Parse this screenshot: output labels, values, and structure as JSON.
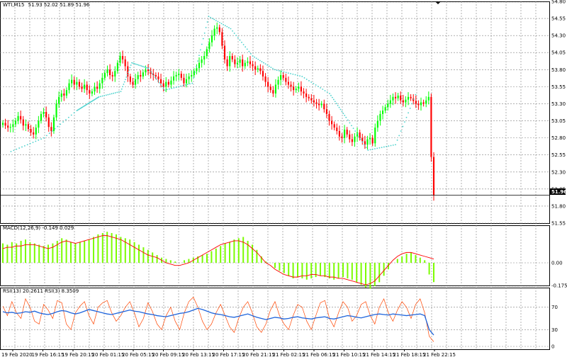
{
  "chart_data": [
    {
      "type": "candlestick",
      "panel": "price",
      "title": "WTI,M15",
      "ohlc_label": "51.93 52.02 51.89 51.96",
      "ylim": [
        51.55,
        54.8
      ],
      "y_ticks": [
        "54.80",
        "54.55",
        "54.30",
        "54.05",
        "53.80",
        "53.55",
        "53.30",
        "53.05",
        "52.80",
        "52.55",
        "52.30",
        "52.05",
        "51.80",
        "51.55"
      ],
      "last_price": "51.96",
      "closes": [
        53.02,
        52.98,
        52.95,
        52.96,
        53.0,
        53.05,
        53.12,
        53.07,
        52.98,
        53.0,
        52.93,
        52.88,
        52.85,
        52.95,
        53.05,
        53.15,
        53.18,
        53.1,
        52.96,
        52.9,
        53.1,
        53.3,
        53.4,
        53.45,
        53.42,
        53.5,
        53.6,
        53.65,
        53.58,
        53.62,
        53.55,
        53.52,
        53.58,
        53.5,
        53.45,
        53.48,
        53.55,
        53.52,
        53.6,
        53.68,
        53.75,
        53.8,
        53.72,
        53.7,
        53.78,
        53.9,
        54.0,
        53.95,
        53.85,
        53.7,
        53.62,
        53.58,
        53.66,
        53.72,
        53.7,
        53.76,
        53.8,
        53.78,
        53.74,
        53.72,
        53.7,
        53.66,
        53.6,
        53.55,
        53.62,
        53.58,
        53.64,
        53.7,
        53.72,
        53.74,
        53.68,
        53.6,
        53.66,
        53.7,
        53.72,
        53.78,
        53.82,
        53.9,
        53.95,
        54.0,
        54.1,
        54.2,
        54.3,
        54.4,
        54.42,
        54.35,
        54.15,
        53.95,
        53.85,
        54.0,
        53.95,
        53.88,
        53.9,
        53.95,
        53.85,
        53.9,
        53.92,
        53.88,
        53.85,
        53.8,
        53.82,
        53.78,
        53.7,
        53.62,
        53.55,
        53.5,
        53.45,
        53.58,
        53.65,
        53.72,
        53.68,
        53.62,
        53.58,
        53.55,
        53.5,
        53.52,
        53.55,
        53.48,
        53.45,
        53.4,
        53.38,
        53.35,
        53.32,
        53.3,
        53.28,
        53.3,
        53.22,
        53.15,
        53.05,
        53.0,
        52.95,
        52.9,
        52.82,
        52.8,
        52.92,
        52.85,
        52.78,
        52.74,
        52.82,
        52.88,
        52.8,
        52.75,
        52.7,
        52.78,
        52.8,
        52.72,
        52.95,
        53.05,
        53.15,
        53.2,
        53.25,
        53.3,
        53.35,
        53.4,
        53.38,
        53.42,
        53.35,
        53.32,
        53.36,
        53.4,
        53.38,
        53.34,
        53.3,
        53.28,
        53.32,
        53.3,
        53.35,
        53.4,
        52.52,
        51.96
      ],
      "psar": [
        {
          "x": 0.02,
          "y": 52.6
        },
        {
          "x": 0.08,
          "y": 52.8
        },
        {
          "x": 0.14,
          "y": 53.2
        },
        {
          "x": 0.16,
          "y": 53.3
        },
        {
          "x": 0.18,
          "y": 53.4
        },
        {
          "x": 0.22,
          "y": 53.48
        },
        {
          "x": 0.24,
          "y": 53.9
        },
        {
          "x": 0.27,
          "y": 53.82
        },
        {
          "x": 0.3,
          "y": 53.5
        },
        {
          "x": 0.35,
          "y": 53.6
        },
        {
          "x": 0.38,
          "y": 54.58
        },
        {
          "x": 0.42,
          "y": 54.4
        },
        {
          "x": 0.46,
          "y": 54.0
        },
        {
          "x": 0.5,
          "y": 53.8
        },
        {
          "x": 0.55,
          "y": 53.7
        },
        {
          "x": 0.6,
          "y": 53.45
        },
        {
          "x": 0.63,
          "y": 53.1
        },
        {
          "x": 0.67,
          "y": 52.62
        },
        {
          "x": 0.72,
          "y": 52.7
        },
        {
          "x": 0.76,
          "y": 53.5
        }
      ]
    },
    {
      "type": "macd",
      "panel": "macd",
      "label": "MACD(12,26,9) -0.149 0.029",
      "ylim": [
        -0.175,
        0.29
      ],
      "y_ticks": [
        "0.00",
        "-0.175"
      ],
      "histogram": [
        0.15,
        0.14,
        0.16,
        0.15,
        0.17,
        0.18,
        0.16,
        0.15,
        0.14,
        0.13,
        0.14,
        0.15,
        0.17,
        0.19,
        0.18,
        0.16,
        0.15,
        0.16,
        0.17,
        0.18,
        0.2,
        0.22,
        0.23,
        0.24,
        0.23,
        0.22,
        0.2,
        0.19,
        0.18,
        0.16,
        0.14,
        0.12,
        0.1,
        0.08,
        0.06,
        0.04,
        0.03,
        0.02,
        0.01,
        0.0,
        0.02,
        0.03,
        0.04,
        0.05,
        0.06,
        0.07,
        0.09,
        0.11,
        0.13,
        0.15,
        0.16,
        0.18,
        0.19,
        0.2,
        0.17,
        0.14,
        0.1,
        0.05,
        0.01,
        0.0,
        -0.04,
        -0.06,
        -0.08,
        -0.1,
        -0.12,
        -0.11,
        -0.12,
        -0.13,
        -0.12,
        -0.11,
        -0.1,
        -0.11,
        -0.12,
        -0.13,
        -0.12,
        -0.11,
        -0.12,
        -0.13,
        -0.15,
        -0.17,
        -0.19,
        -0.2,
        -0.18,
        -0.15,
        -0.1,
        -0.05,
        0.0,
        0.03,
        0.05,
        0.07,
        0.08,
        0.06,
        0.04,
        0.02,
        -0.09,
        -0.149
      ],
      "signal": [
        0.11,
        0.12,
        0.12,
        0.13,
        0.13,
        0.14,
        0.14,
        0.14,
        0.13,
        0.12,
        0.11,
        0.12,
        0.14,
        0.16,
        0.17,
        0.16,
        0.15,
        0.16,
        0.17,
        0.18,
        0.19,
        0.2,
        0.21,
        0.21,
        0.2,
        0.19,
        0.18,
        0.16,
        0.14,
        0.12,
        0.1,
        0.08,
        0.06,
        0.05,
        0.04,
        0.02,
        0.0,
        -0.01,
        -0.02,
        -0.02,
        -0.01,
        0.0,
        0.02,
        0.04,
        0.06,
        0.08,
        0.1,
        0.12,
        0.14,
        0.15,
        0.16,
        0.17,
        0.17,
        0.16,
        0.14,
        0.11,
        0.08,
        0.04,
        0.0,
        -0.02,
        -0.05,
        -0.07,
        -0.09,
        -0.1,
        -0.11,
        -0.11,
        -0.1,
        -0.1,
        -0.09,
        -0.09,
        -0.1,
        -0.1,
        -0.11,
        -0.11,
        -0.12,
        -0.12,
        -0.13,
        -0.14,
        -0.15,
        -0.16,
        -0.17,
        -0.16,
        -0.14,
        -0.1,
        -0.06,
        -0.02,
        0.02,
        0.05,
        0.07,
        0.08,
        0.08,
        0.07,
        0.06,
        0.05,
        0.04,
        0.029
      ]
    },
    {
      "type": "rsi",
      "panel": "rsi",
      "label": "RSI(13) 20.2611 RSI(3) 8.3509",
      "ylim": [
        0,
        100
      ],
      "y_ticks": [
        "70",
        "30",
        "0"
      ],
      "rsi13": [
        62,
        60,
        61,
        59,
        60,
        62,
        61,
        63,
        60,
        58,
        57,
        59,
        62,
        64,
        63,
        60,
        58,
        60,
        63,
        66,
        64,
        62,
        60,
        58,
        57,
        59,
        61,
        63,
        65,
        63,
        62,
        60,
        58,
        57,
        55,
        54,
        53,
        55,
        57,
        59,
        60,
        62,
        65,
        68,
        66,
        63,
        60,
        58,
        57,
        55,
        53,
        52,
        54,
        56,
        58,
        55,
        52,
        50,
        48,
        50,
        52,
        51,
        49,
        50,
        52,
        53,
        51,
        50,
        49,
        51,
        52,
        53,
        50,
        49,
        51,
        53,
        55,
        54,
        52,
        51,
        53,
        55,
        57,
        58,
        57,
        56,
        58,
        57,
        56,
        55,
        56,
        57,
        58,
        55,
        30,
        20.2611
      ],
      "rsi3": [
        72,
        55,
        80,
        60,
        50,
        85,
        70,
        45,
        40,
        75,
        65,
        50,
        82,
        78,
        40,
        30,
        60,
        72,
        80,
        55,
        40,
        70,
        78,
        82,
        60,
        45,
        55,
        70,
        80,
        60,
        35,
        50,
        78,
        62,
        40,
        30,
        55,
        70,
        45,
        30,
        60,
        80,
        88,
        70,
        45,
        30,
        40,
        60,
        75,
        55,
        35,
        25,
        50,
        70,
        80,
        60,
        35,
        25,
        40,
        65,
        80,
        55,
        40,
        30,
        55,
        75,
        70,
        45,
        30,
        55,
        78,
        82,
        50,
        35,
        60,
        80,
        70,
        45,
        55,
        75,
        80,
        55,
        40,
        70,
        85,
        60,
        45,
        65,
        80,
        70,
        50,
        75,
        85,
        60,
        18,
        8.3509
      ]
    }
  ],
  "x_axis": {
    "labels": [
      "19 Feb 2020",
      "19 Feb 16:15",
      "19 Feb 20:15",
      "20 Feb 01:15",
      "20 Feb 05:15",
      "20 Feb 09:15",
      "20 Feb 13:15",
      "20 Feb 17:15",
      "20 Feb 21:15",
      "21 Feb 02:15",
      "21 Feb 06:15",
      "21 Feb 10:15",
      "21 Feb 14:15",
      "21 Feb 18:15",
      "21 Feb 22:15"
    ]
  },
  "colors": {
    "bull": "#00ff00",
    "bear": "#ff0000",
    "psar": "#48d1cc",
    "macd_hist": "#7cfc00",
    "macd_signal": "#ff0000",
    "rsi13": "#1e64dc",
    "rsi3": "#ff4500",
    "grid": "#808080",
    "last_price_bg": "#000000"
  }
}
